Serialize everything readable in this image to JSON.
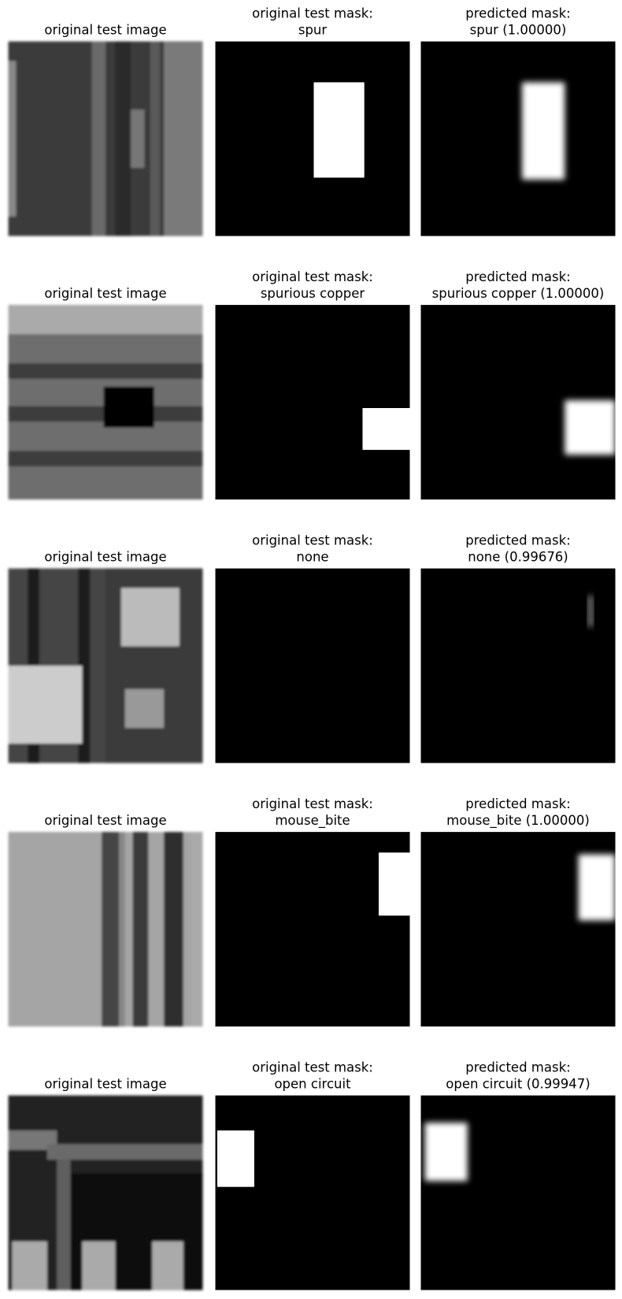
{
  "rows": [
    {
      "image_title": "original test image",
      "mask_title": [
        "original test mask:",
        "spur"
      ],
      "predicted_title": [
        "predicted mask:",
        "spur (1.00000)"
      ]
    },
    {
      "image_title": "original test image",
      "mask_title": [
        "original test mask:",
        "spurious copper"
      ],
      "predicted_title": [
        "predicted mask:",
        "spurious copper (1.00000)"
      ]
    },
    {
      "image_title": "original test image",
      "mask_title": [
        "original test mask:",
        "none"
      ],
      "predicted_title": [
        "predicted mask:",
        "none (0.99676)"
      ]
    },
    {
      "image_title": "original test image",
      "mask_title": [
        "original test mask:",
        "mouse_bite"
      ],
      "predicted_title": [
        "predicted mask:",
        "mouse_bite (1.00000)"
      ]
    },
    {
      "image_title": "original test image",
      "mask_title": [
        "original test mask:",
        "open circuit"
      ],
      "predicted_title": [
        "predicted mask:",
        "open circuit (0.99947)"
      ]
    }
  ]
}
